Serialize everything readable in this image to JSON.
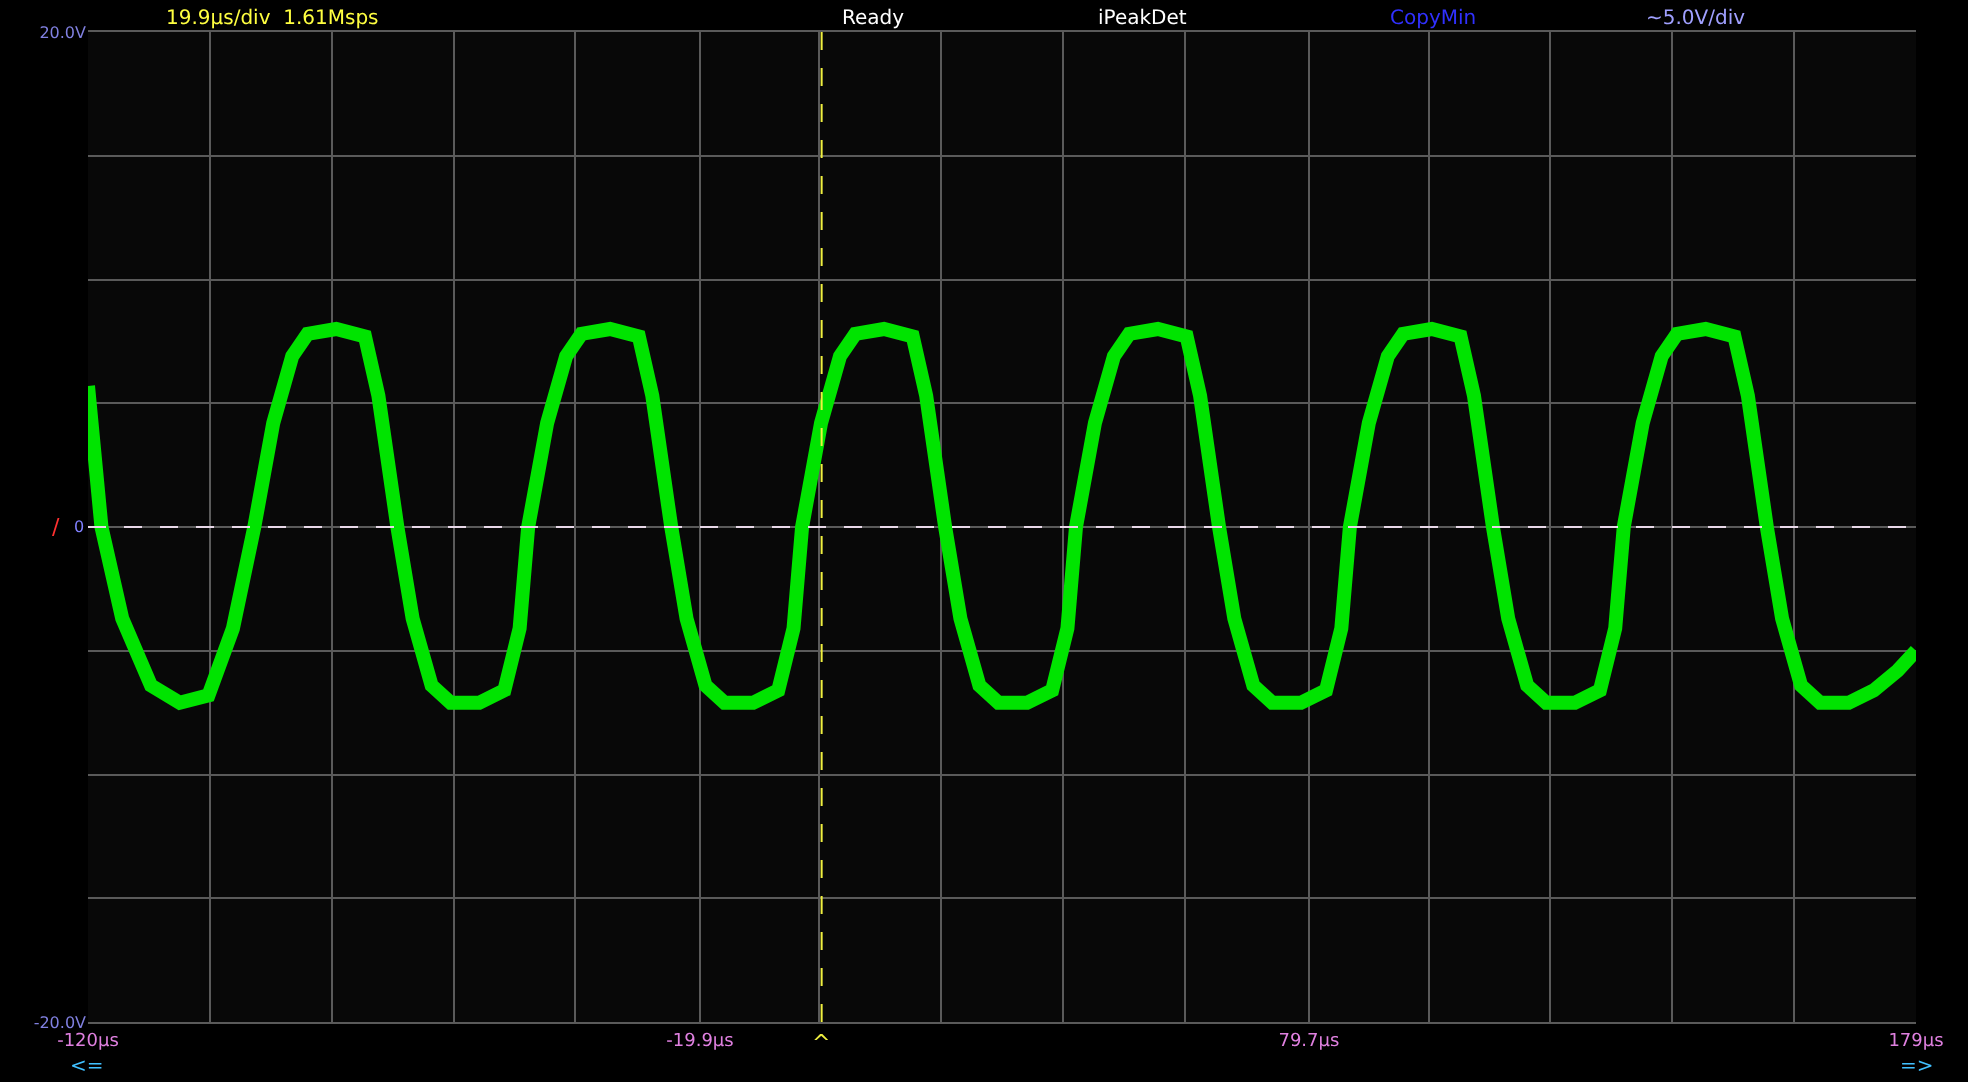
{
  "chart_data": {
    "type": "line",
    "annotations": [
      "19.9µs/div  1.61Msps",
      "Ready",
      "iPeakDet",
      "CopyMin",
      "~5.0V/div",
      "<=",
      "=>",
      "/"
    ],
    "x": [
      -120,
      -117.8,
      -114.4,
      -109.7,
      -105,
      -100.3,
      -96.3,
      -92.8,
      -89.7,
      -86.6,
      -84.1,
      -79.4,
      -74.7,
      -72.5,
      -69.4,
      -66.9,
      -63.8,
      -60.7,
      -56.0,
      -51.9,
      -49.4,
      -48.0,
      -44.9,
      -41.8,
      -39.3,
      -34.6,
      -29.9,
      -27.7,
      -24.6,
      -22.1,
      -19.0,
      -15.9,
      -11.2,
      -7.1,
      -4.6,
      -3.2,
      -0.1,
      3.0,
      5.5,
      10.2,
      14.9,
      17.1,
      20.2,
      22.7,
      25.8,
      28.9,
      33.6,
      37.7,
      40.2,
      41.6,
      44.7,
      47.8,
      50.3,
      55.0,
      59.7,
      61.9,
      65.0,
      67.5,
      70.6,
      73.7,
      78.4,
      82.5,
      85.0,
      86.4,
      89.5,
      92.6,
      95.1,
      99.8,
      104.5,
      106.7,
      109.8,
      112.3,
      115.4,
      118.5,
      123.2,
      127.3,
      129.8,
      131.2,
      134.3,
      137.4,
      139.9,
      144.6,
      149.3,
      151.5,
      154.6,
      157.1,
      160.2,
      163.3,
      168.0,
      172.1,
      176.0,
      179
    ],
    "series": [
      {
        "color": "#00e400",
        "values": [
          5.7,
          0,
          -3.7,
          -6.4,
          -7.1,
          -6.8,
          -4.1,
          0,
          4.2,
          6.9,
          7.8,
          8.0,
          7.7,
          5.3,
          0,
          -3.7,
          -6.4,
          -7.1,
          -7.1,
          -6.6,
          -4.1,
          0,
          4.2,
          6.9,
          7.8,
          8.0,
          7.7,
          5.3,
          0,
          -3.7,
          -6.4,
          -7.1,
          -7.1,
          -6.6,
          -4.1,
          0,
          4.2,
          6.9,
          7.8,
          8.0,
          7.7,
          5.3,
          0,
          -3.7,
          -6.4,
          -7.1,
          -7.1,
          -6.6,
          -4.1,
          0,
          4.2,
          6.9,
          7.8,
          8.0,
          7.7,
          5.3,
          0,
          -3.7,
          -6.4,
          -7.1,
          -7.1,
          -6.6,
          -4.1,
          0,
          4.2,
          6.9,
          7.8,
          8.0,
          7.7,
          5.3,
          0,
          -3.7,
          -6.4,
          -7.1,
          -7.1,
          -6.6,
          -4.1,
          0,
          4.2,
          6.9,
          7.8,
          8.0,
          7.7,
          5.3,
          0,
          -3.7,
          -6.4,
          -7.1,
          -7.1,
          -6.6,
          -5.8,
          -5.0
        ]
      }
    ],
    "xlim": [
      -120,
      179
    ],
    "xticks": [
      {
        "value": -120,
        "label": "-120µs"
      },
      {
        "value": -100.1,
        "label": null
      },
      {
        "value": -80.1,
        "label": null
      },
      {
        "value": -60.2,
        "label": null
      },
      {
        "value": -40.3,
        "label": null
      },
      {
        "value": -19.9,
        "label": "-19.9µs"
      },
      {
        "value": -0.4,
        "label": null
      },
      {
        "value": 19.5,
        "label": null
      },
      {
        "value": 39.5,
        "label": null
      },
      {
        "value": 59.4,
        "label": null
      },
      {
        "value": 79.7,
        "label": "79.7µs"
      },
      {
        "value": 99.3,
        "label": null
      },
      {
        "value": 119.2,
        "label": null
      },
      {
        "value": 139.1,
        "label": null
      },
      {
        "value": 159.1,
        "label": null
      },
      {
        "value": 179,
        "label": "179µs"
      }
    ],
    "ylim": [
      -20,
      20
    ],
    "yticks": [
      {
        "value": 20,
        "label": "20.0V"
      },
      {
        "value": 15,
        "label": null
      },
      {
        "value": 10,
        "label": null
      },
      {
        "value": 5,
        "label": null
      },
      {
        "value": 0,
        "label": null
      },
      {
        "value": -5,
        "label": null
      },
      {
        "value": -10,
        "label": null
      },
      {
        "value": -15,
        "label": null
      },
      {
        "value": -20,
        "label": "-20.0V"
      }
    ],
    "ref_lines": [
      {
        "axis": "y",
        "value": 0,
        "label": "0",
        "color": "#e8d8e8",
        "line_style": "dashed"
      },
      {
        "axis": "x",
        "value": 0,
        "label": "^",
        "color": "#f0f040",
        "line_style": "dashed"
      }
    ],
    "grid": true,
    "marker": "none",
    "line_style": "solid"
  }
}
